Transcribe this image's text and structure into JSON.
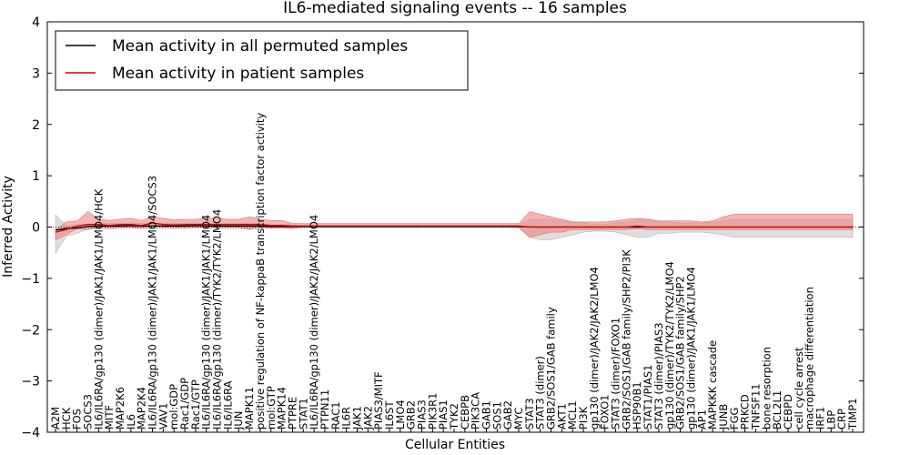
{
  "chart_data": {
    "type": "line",
    "title": "IL6-mediated signaling events -- 16 samples",
    "xlabel": "Cellular Entities",
    "ylabel": "Inferred Activity",
    "ylim": [
      -4,
      4
    ],
    "yticks": [
      -4,
      -3,
      -2,
      -1,
      0,
      1,
      2,
      3,
      4
    ],
    "legend_position": "top-left",
    "categories": [
      "A2M",
      "HCK",
      "FOS",
      "SOCS3",
      "IL6/IL6RA/gp130 (dimer)/JAK1/JAK1/LMO4/HCK",
      "MITF",
      "MAP2K6",
      "IL6",
      "MAP2K4",
      "IL6/IL6RA/gp130 (dimer)/JAK1/JAK1/LMO4/SOCS3",
      "VAV1",
      "mol:GDP",
      "Rac1/GDP",
      "Rac1/GTP",
      "IL6/IL6RA/gp130 (dimer)/JAK1/JAK1/LMO4",
      "IL6/IL6RA/gp130 (dimer)/TYK2/TYK2/LMO4",
      "IL6/IL6RA",
      "JUN",
      "MAPK11",
      "positive regulation of NF-kappaB transcription factor activity",
      "mol:GTP",
      "MAPK14",
      "PTPRE",
      "STAT1",
      "IL6/IL6RA/gp130 (dimer)/JAK2/JAK2/LMO4",
      "PTPN11",
      "RAC1",
      "IL6R",
      "JAK1",
      "JAK2",
      "PIAS3/MITF",
      "IL6ST",
      "LMO4",
      "GRB2",
      "PIAS3",
      "PIK3R1",
      "PIAS1",
      "TYK2",
      "CEBPB",
      "PIK3CA",
      "GAB1",
      "SOS1",
      "GAB2",
      "MYC",
      "STAT3",
      "STAT3 (dimer)",
      "GRB2/SOS1/GAB family",
      "AKT1",
      "MCL1",
      "PI3K",
      "gp130 (dimer)/JAK2/JAK2/LMO4",
      "FOXO1",
      "STAT3 (dimer)/FOXO1",
      "GRB2/SOS1/GAB family/SHP2/PI3K",
      "HSP90B1",
      "STAT1/PIAS1",
      "STAT3 (dimer)/PIAS3",
      "gp130 (dimer)/TYK2/TYK2/LMO4",
      "GRB2/SOS1/GAB family/SHP2",
      "gp130 (dimer)/JAK1/JAK1/LMO4",
      "AP1",
      "MAPKKK cascade",
      "JUNB",
      "FGG",
      "PRKCD",
      "TNFSF11",
      "bone resorption",
      "BCL2L1",
      "CEBPD",
      "cell cycle arrest",
      "macrophage differentiation",
      "IRF1",
      "LBP",
      "CRP",
      "TIMP1"
    ],
    "series": [
      {
        "name": "Mean activity in all permuted samples",
        "color": "#000000",
        "values": [
          -0.06,
          -0.03,
          -0.02,
          0.01,
          0.02,
          0.02,
          0.02,
          0.03,
          0.02,
          0.02,
          0.02,
          0.02,
          0.02,
          0.03,
          0.02,
          0.02,
          0.02,
          0.02,
          0.02,
          0.02,
          0.01,
          0.01,
          0.01,
          0.01,
          0.01,
          0.01,
          0.01,
          0.01,
          0.01,
          0.01,
          0.01,
          0.01,
          0.01,
          0.01,
          0.01,
          0.01,
          0.01,
          0.01,
          0.01,
          0.01,
          0.01,
          0.01,
          0.01,
          0.01,
          0.0,
          0.0,
          0.0,
          0.0,
          0.0,
          0.0,
          0.0,
          0.0,
          0.0,
          0.0,
          0.0,
          0.0,
          0.0,
          0.0,
          0.0,
          0.0,
          0.0,
          0.0,
          0.0,
          0.0,
          0.0,
          0.0,
          0.0,
          0.0,
          0.0,
          0.0,
          0.0,
          0.0,
          0.0,
          0.0,
          0.0
        ],
        "band_low": [
          -0.45,
          -0.15,
          -0.1,
          -0.05,
          -0.05,
          -0.05,
          -0.05,
          -0.05,
          -0.05,
          -0.05,
          -0.05,
          -0.05,
          -0.05,
          -0.05,
          -0.05,
          -0.05,
          -0.05,
          -0.05,
          -0.05,
          -0.05,
          -0.03,
          -0.03,
          -0.03,
          -0.02,
          -0.02,
          -0.02,
          -0.02,
          -0.02,
          -0.02,
          -0.02,
          -0.02,
          -0.02,
          -0.02,
          -0.02,
          -0.02,
          -0.02,
          -0.02,
          -0.02,
          -0.02,
          -0.02,
          -0.02,
          -0.02,
          -0.02,
          -0.03,
          -0.2,
          -0.25,
          -0.25,
          -0.2,
          -0.15,
          -0.1,
          -0.08,
          -0.08,
          -0.1,
          -0.15,
          -0.2,
          -0.2,
          -0.12,
          -0.12,
          -0.1,
          -0.1,
          -0.1,
          -0.12,
          -0.15,
          -0.2,
          -0.2,
          -0.2,
          -0.2,
          -0.2,
          -0.2,
          -0.2,
          -0.2,
          -0.2,
          -0.2,
          -0.2,
          -0.2
        ],
        "band_high": [
          0.3,
          0.05,
          0.05,
          0.05,
          0.05,
          0.05,
          0.05,
          0.05,
          0.05,
          0.05,
          0.05,
          0.05,
          0.05,
          0.05,
          0.05,
          0.05,
          0.05,
          0.05,
          0.05,
          0.05,
          0.03,
          0.03,
          0.03,
          0.02,
          0.02,
          0.02,
          0.02,
          0.02,
          0.02,
          0.02,
          0.02,
          0.02,
          0.02,
          0.02,
          0.02,
          0.02,
          0.02,
          0.02,
          0.02,
          0.02,
          0.02,
          0.02,
          0.02,
          0.03,
          0.15,
          0.15,
          0.15,
          0.12,
          0.1,
          0.08,
          0.05,
          0.05,
          0.08,
          0.1,
          0.15,
          0.15,
          0.1,
          0.1,
          0.08,
          0.08,
          0.08,
          0.1,
          0.12,
          0.15,
          0.15,
          0.15,
          0.15,
          0.15,
          0.15,
          0.15,
          0.15,
          0.15,
          0.15,
          0.15,
          0.15
        ]
      },
      {
        "name": "Mean activity in patient samples",
        "color": "#cc0000",
        "values": [
          -0.1,
          -0.05,
          0.02,
          0.05,
          0.05,
          0.03,
          0.05,
          0.05,
          0.03,
          0.08,
          0.05,
          0.04,
          0.05,
          0.05,
          0.05,
          0.05,
          0.05,
          0.05,
          0.05,
          0.05,
          0.03,
          0.03,
          0.02,
          0.02,
          0.02,
          0.02,
          0.02,
          0.02,
          0.02,
          0.02,
          0.02,
          0.02,
          0.02,
          0.02,
          0.02,
          0.02,
          0.02,
          0.02,
          0.02,
          0.02,
          0.02,
          0.02,
          0.02,
          0.02,
          0.0,
          0.0,
          0.0,
          0.0,
          0.0,
          0.0,
          0.0,
          0.0,
          0.0,
          0.0,
          0.02,
          0.0,
          0.0,
          0.0,
          0.0,
          0.0,
          0.0,
          0.0,
          0.0,
          0.0,
          0.0,
          0.0,
          0.0,
          0.0,
          0.0,
          0.0,
          0.0,
          0.0,
          0.0,
          0.0,
          0.0
        ],
        "band_low": [
          -0.15,
          -0.1,
          -0.05,
          -0.1,
          -0.05,
          -0.05,
          -0.05,
          -0.05,
          -0.05,
          -0.05,
          -0.05,
          -0.05,
          -0.05,
          -0.05,
          -0.05,
          -0.05,
          -0.05,
          -0.05,
          -0.1,
          -0.05,
          -0.05,
          -0.05,
          -0.05,
          -0.02,
          -0.02,
          -0.02,
          -0.02,
          -0.02,
          -0.02,
          -0.02,
          -0.02,
          -0.02,
          -0.02,
          -0.02,
          -0.02,
          -0.02,
          -0.02,
          -0.02,
          -0.02,
          -0.02,
          -0.02,
          -0.02,
          -0.02,
          -0.02,
          -0.2,
          -0.15,
          -0.1,
          -0.1,
          -0.05,
          -0.05,
          -0.05,
          -0.05,
          -0.05,
          -0.05,
          -0.05,
          -0.05,
          -0.05,
          -0.05,
          -0.05,
          -0.05,
          -0.05,
          -0.05,
          -0.05,
          -0.05,
          -0.05,
          -0.05,
          -0.05,
          -0.05,
          -0.05,
          -0.05,
          -0.05,
          -0.05,
          -0.05,
          -0.05,
          -0.05
        ],
        "band_high": [
          0.05,
          0.15,
          0.1,
          0.25,
          0.1,
          0.1,
          0.1,
          0.12,
          0.1,
          0.12,
          0.12,
          0.1,
          0.1,
          0.1,
          0.12,
          0.12,
          0.1,
          0.1,
          0.15,
          0.1,
          0.1,
          0.1,
          0.05,
          0.05,
          0.05,
          0.05,
          0.05,
          0.05,
          0.05,
          0.05,
          0.05,
          0.05,
          0.05,
          0.05,
          0.05,
          0.05,
          0.05,
          0.05,
          0.05,
          0.05,
          0.05,
          0.05,
          0.05,
          0.05,
          0.3,
          0.25,
          0.2,
          0.15,
          0.1,
          0.1,
          0.1,
          0.1,
          0.12,
          0.15,
          0.15,
          0.15,
          0.12,
          0.12,
          0.12,
          0.12,
          0.1,
          0.12,
          0.2,
          0.25,
          0.25,
          0.25,
          0.25,
          0.25,
          0.25,
          0.25,
          0.25,
          0.25,
          0.25,
          0.25,
          0.25
        ]
      }
    ]
  }
}
